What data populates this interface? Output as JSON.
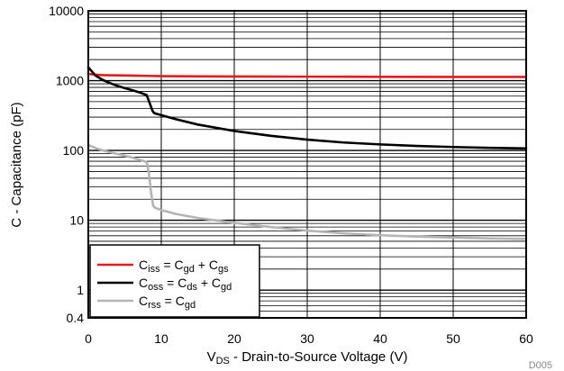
{
  "figure_id": "D005",
  "chart_data": {
    "type": "line",
    "title": "",
    "xlabel": {
      "main": "V",
      "sub": "DS",
      "rest": " - Drain-to-Source Voltage (V)"
    },
    "ylabel": "C - Capacitance (pF)",
    "xlim": [
      0,
      60
    ],
    "ylim": [
      0.4,
      10000
    ],
    "y_scale": "log",
    "grid": true,
    "legend_position": "bottom-left",
    "x_ticks": [
      {
        "value": 0,
        "label": "0"
      },
      {
        "value": 10,
        "label": "10"
      },
      {
        "value": 20,
        "label": "20"
      },
      {
        "value": 30,
        "label": "30"
      },
      {
        "value": 40,
        "label": "40"
      },
      {
        "value": 50,
        "label": "50"
      },
      {
        "value": 60,
        "label": "60"
      }
    ],
    "y_ticks": [
      {
        "value": 0.4,
        "label": "0.4"
      },
      {
        "value": 1,
        "label": "1"
      },
      {
        "value": 10,
        "label": "10"
      },
      {
        "value": 100,
        "label": "100"
      },
      {
        "value": 1000,
        "label": "1000"
      },
      {
        "value": 10000,
        "label": "10000"
      }
    ],
    "series": [
      {
        "key": "ciss",
        "legend": [
          {
            "t": "C",
            "s": false
          },
          {
            "t": "iss",
            "s": true
          },
          {
            "t": " = C",
            "s": false
          },
          {
            "t": "gd",
            "s": true
          },
          {
            "t": " + C",
            "s": false
          },
          {
            "t": "gs",
            "s": true
          }
        ],
        "color": "#e41a1c",
        "x": [
          0,
          0.5,
          1,
          2,
          4,
          6,
          8,
          10,
          15,
          20,
          30,
          40,
          50,
          60
        ],
        "y": [
          1250,
          1230,
          1215,
          1200,
          1190,
          1180,
          1170,
          1160,
          1150,
          1145,
          1140,
          1135,
          1130,
          1130
        ]
      },
      {
        "key": "coss",
        "legend": [
          {
            "t": "C",
            "s": false
          },
          {
            "t": "oss",
            "s": true
          },
          {
            "t": " = C",
            "s": false
          },
          {
            "t": "ds",
            "s": true
          },
          {
            "t": " + C",
            "s": false
          },
          {
            "t": "gd",
            "s": true
          }
        ],
        "color": "#000000",
        "x": [
          0,
          0.5,
          1,
          2,
          3,
          4,
          5,
          6,
          7,
          8,
          8.5,
          8.8,
          9,
          9.3,
          9.6,
          10,
          12,
          15,
          20,
          25,
          30,
          35,
          40,
          45,
          50,
          55,
          60
        ],
        "y": [
          1550,
          1350,
          1180,
          1020,
          920,
          840,
          780,
          730,
          680,
          620,
          450,
          370,
          345,
          335,
          330,
          320,
          280,
          235,
          190,
          162,
          143,
          130,
          122,
          116,
          112,
          109,
          107
        ]
      },
      {
        "key": "crss",
        "legend": [
          {
            "t": "C",
            "s": false
          },
          {
            "t": "rss",
            "s": true
          },
          {
            "t": " = C",
            "s": false
          },
          {
            "t": "gd",
            "s": true
          }
        ],
        "color": "#b4b4b4",
        "x": [
          0,
          1,
          2,
          3,
          4,
          5,
          6,
          7,
          8,
          8.3,
          8.6,
          8.9,
          9.2,
          9.6,
          10,
          12,
          15,
          20,
          25,
          30,
          35,
          40,
          45,
          50,
          55,
          60
        ],
        "y": [
          120,
          108,
          100,
          94,
          89,
          84,
          79,
          74,
          68,
          48,
          25,
          16,
          15,
          14.5,
          14,
          12.3,
          10.8,
          9.2,
          8,
          7.1,
          6.5,
          6.1,
          5.85,
          5.65,
          5.5,
          5.4
        ]
      }
    ]
  }
}
